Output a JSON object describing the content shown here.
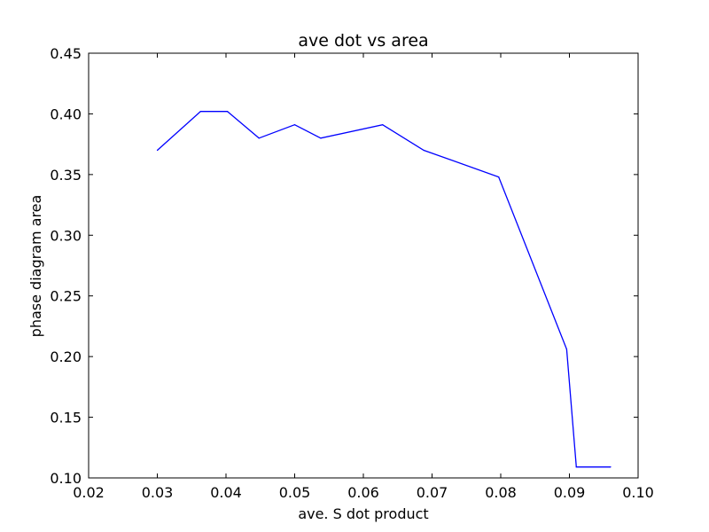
{
  "chart_data": {
    "type": "line",
    "title": "ave dot vs area",
    "xlabel": "ave. S dot product",
    "ylabel": "phase diagram area",
    "xlim": [
      0.02,
      0.1
    ],
    "ylim": [
      0.1,
      0.45
    ],
    "xticks": [
      "0.02",
      "0.03",
      "0.04",
      "0.05",
      "0.06",
      "0.07",
      "0.08",
      "0.09",
      "0.10"
    ],
    "yticks": [
      "0.10",
      "0.15",
      "0.20",
      "0.25",
      "0.30",
      "0.35",
      "0.40",
      "0.45"
    ],
    "grid": false,
    "series": [
      {
        "color": "#0000ff",
        "x": [
          0.03,
          0.0363,
          0.0402,
          0.0448,
          0.05,
          0.0538,
          0.0628,
          0.0688,
          0.0797,
          0.0896,
          0.091,
          0.096
        ],
        "y": [
          0.37,
          0.402,
          0.402,
          0.38,
          0.391,
          0.38,
          0.391,
          0.37,
          0.348,
          0.206,
          0.109,
          0.109
        ]
      }
    ]
  }
}
